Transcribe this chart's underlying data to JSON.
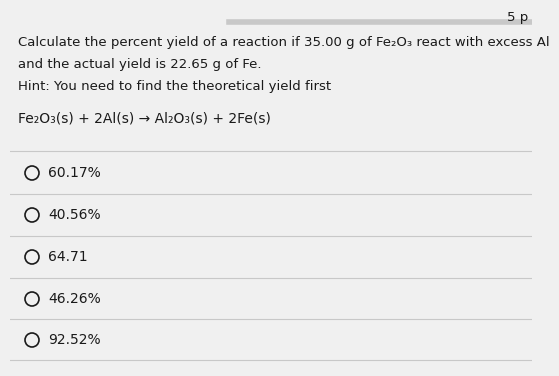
{
  "background_color": "#f0f0f0",
  "top_strip_color": "#c8c8c8",
  "text_color": "#1a1a1a",
  "hint_color": "#1a1a1a",
  "divider_color": "#c8c8c8",
  "title_line1": "Calculate the percent yield of a reaction if 35.00 g of Fe₂O₃ react with excess Al",
  "title_line2": "and the actual yield is 22.65 g of Fe.",
  "hint": "Hint: You need to find the theoretical yield first",
  "equation": "Fe₂O₃(s) + 2Al(s) → Al₂O₃(s) + 2Fe(s)",
  "choices": [
    "60.17%",
    "40.56%",
    "64.71",
    "46.26%",
    "92.52%"
  ],
  "points_label": "5 p",
  "title_fontsize": 9.5,
  "hint_fontsize": 9.5,
  "equation_fontsize": 10.0,
  "choice_fontsize": 10.0,
  "points_fontsize": 9.5,
  "fig_width": 5.22,
  "fig_height": 3.56
}
